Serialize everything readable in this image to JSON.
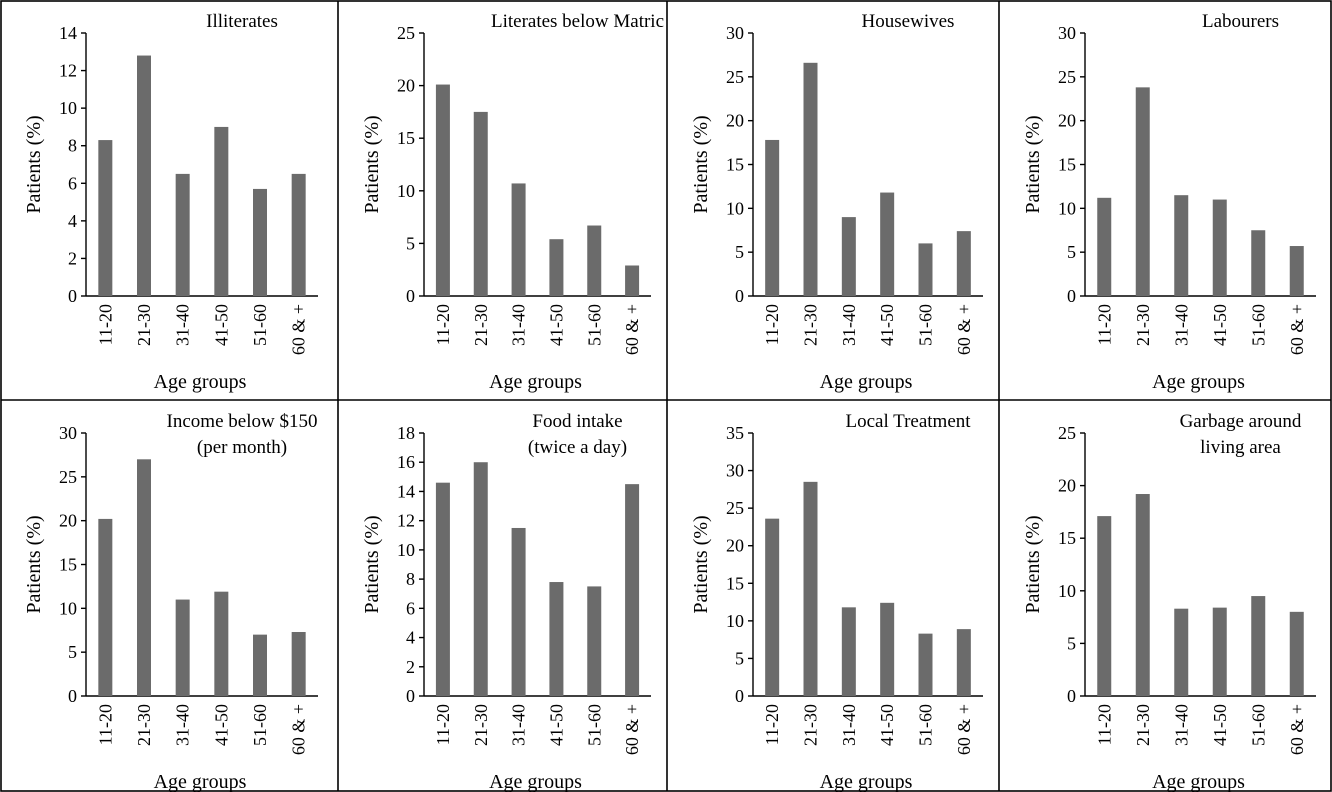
{
  "chart_data": [
    {
      "type": "bar",
      "title": [
        "Illiterates"
      ],
      "categories": [
        "11-20",
        "21-30",
        "31-40",
        "41-50",
        "51-60",
        "60 & +"
      ],
      "values": [
        8.3,
        12.8,
        6.5,
        9.0,
        5.7,
        6.5
      ],
      "ylim": [
        0,
        14
      ],
      "yticks": [
        0,
        2,
        4,
        6,
        8,
        10,
        12,
        14
      ],
      "xlabel": "Age groups",
      "ylabel": "Patients (%)"
    },
    {
      "type": "bar",
      "title": [
        "Literates below Matric"
      ],
      "categories": [
        "11-20",
        "21-30",
        "31-40",
        "41-50",
        "51-60",
        "60 & +"
      ],
      "values": [
        20.1,
        17.5,
        10.7,
        5.4,
        6.7,
        2.9
      ],
      "ylim": [
        0,
        25
      ],
      "yticks": [
        0,
        5,
        10,
        15,
        20,
        25
      ],
      "xlabel": "Age groups",
      "ylabel": "Patients (%)"
    },
    {
      "type": "bar",
      "title": [
        "Housewives"
      ],
      "categories": [
        "11-20",
        "21-30",
        "31-40",
        "41-50",
        "51-60",
        "60 & +"
      ],
      "values": [
        17.8,
        26.6,
        9.0,
        11.8,
        6.0,
        7.4
      ],
      "ylim": [
        0,
        30
      ],
      "yticks": [
        0,
        5,
        10,
        15,
        20,
        25,
        30
      ],
      "xlabel": "Age groups",
      "ylabel": "Patients (%)"
    },
    {
      "type": "bar",
      "title": [
        "Labourers"
      ],
      "categories": [
        "11-20",
        "21-30",
        "31-40",
        "41-50",
        "51-60",
        "60 & +"
      ],
      "values": [
        11.2,
        23.8,
        11.5,
        11.0,
        7.5,
        5.7
      ],
      "ylim": [
        0,
        30
      ],
      "yticks": [
        0,
        5,
        10,
        15,
        20,
        25,
        30
      ],
      "xlabel": "Age groups",
      "ylabel": "Patients (%)"
    },
    {
      "type": "bar",
      "title": [
        "Income below $150",
        "(per month)"
      ],
      "categories": [
        "11-20",
        "21-30",
        "31-40",
        "41-50",
        "51-60",
        "60 & +"
      ],
      "values": [
        20.2,
        27.0,
        11.0,
        11.9,
        7.0,
        7.3
      ],
      "ylim": [
        0,
        30
      ],
      "yticks": [
        0,
        5,
        10,
        15,
        20,
        25,
        30
      ],
      "xlabel": "Age groups",
      "ylabel": "Patients (%)"
    },
    {
      "type": "bar",
      "title": [
        "Food intake",
        "(twice a day)"
      ],
      "categories": [
        "11-20",
        "21-30",
        "31-40",
        "41-50",
        "51-60",
        "60 & +"
      ],
      "values": [
        14.6,
        16.0,
        11.5,
        7.8,
        7.5,
        14.5
      ],
      "ylim": [
        0,
        18
      ],
      "yticks": [
        0,
        2,
        4,
        6,
        8,
        10,
        12,
        14,
        16,
        18
      ],
      "xlabel": "Age groups",
      "ylabel": "Patients (%)"
    },
    {
      "type": "bar",
      "title": [
        "Local Treatment"
      ],
      "categories": [
        "11-20",
        "21-30",
        "31-40",
        "41-50",
        "51-60",
        "60 & +"
      ],
      "values": [
        23.6,
        28.5,
        11.8,
        12.4,
        8.3,
        8.9
      ],
      "ylim": [
        0,
        35
      ],
      "yticks": [
        0,
        5,
        10,
        15,
        20,
        25,
        30,
        35
      ],
      "xlabel": "Age groups",
      "ylabel": "Patients (%)"
    },
    {
      "type": "bar",
      "title": [
        "Garbage around",
        "living area"
      ],
      "categories": [
        "11-20",
        "21-30",
        "31-40",
        "41-50",
        "51-60",
        "60 & +"
      ],
      "values": [
        17.1,
        19.2,
        8.3,
        8.4,
        9.5,
        8.0
      ],
      "ylim": [
        0,
        25
      ],
      "yticks": [
        0,
        5,
        10,
        15,
        20,
        25
      ],
      "xlabel": "Age groups",
      "ylabel": "Patients (%)"
    }
  ]
}
